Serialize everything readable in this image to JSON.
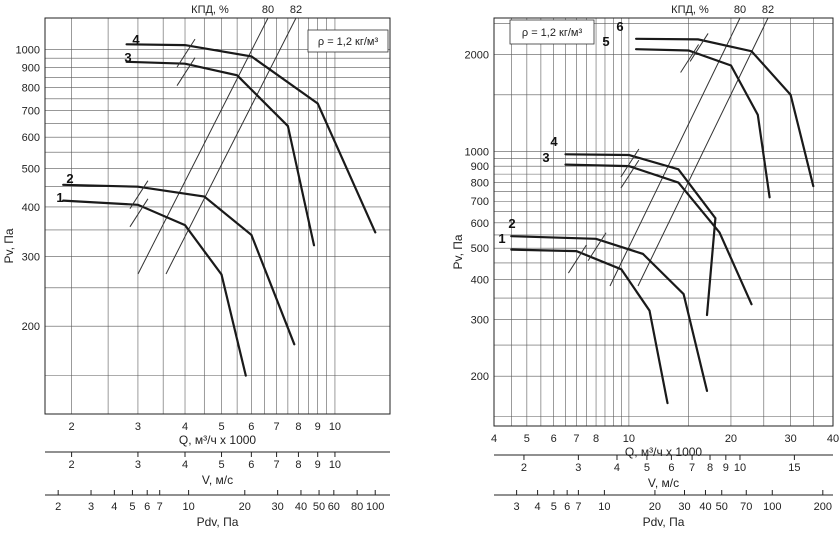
{
  "chart_data": [
    {
      "type": "line",
      "efficiency_label": "КПД, %",
      "efficiency_values": [
        "80",
        "82"
      ],
      "density": "ρ = 1,2 кг/м³",
      "ylabel": "Pv, Па",
      "xlabel": "Q, м³/ч x 1000",
      "scale": "log-log",
      "ylim": [
        120,
        1200
      ],
      "xlim": [
        1.7,
        14
      ],
      "y_ticks": [
        "200",
        "300",
        "400",
        "500",
        "600",
        "700",
        "800",
        "900",
        "1000"
      ],
      "x_ticks": [
        "2",
        "3",
        "4",
        "5",
        "6",
        "7",
        "8",
        "9",
        "10"
      ],
      "v_label": "V, м/с",
      "v_ticks": [
        "2",
        "3",
        "4",
        "5",
        "6",
        "7",
        "8",
        "9",
        "10"
      ],
      "pdv_label": "Pdv, Па",
      "pdv_ticks": [
        "2",
        "3",
        "4",
        "5",
        "6",
        "7",
        "10",
        "20",
        "30",
        "40",
        "50",
        "60",
        "80",
        "100"
      ],
      "series": [
        {
          "name": "1",
          "x": [
            1.9,
            3.0,
            4.0,
            5.0,
            5.8
          ],
          "y": [
            415,
            405,
            360,
            270,
            150
          ]
        },
        {
          "name": "2",
          "x": [
            1.9,
            3.0,
            4.5,
            6.0,
            7.8
          ],
          "y": [
            455,
            450,
            425,
            340,
            180
          ]
        },
        {
          "name": "3",
          "x": [
            2.8,
            4.0,
            5.5,
            7.5,
            8.8
          ],
          "y": [
            930,
            920,
            860,
            640,
            320
          ]
        },
        {
          "name": "4",
          "x": [
            2.8,
            4.0,
            6.0,
            9.0,
            12.8
          ],
          "y": [
            1030,
            1025,
            960,
            730,
            345
          ]
        }
      ]
    },
    {
      "type": "line",
      "efficiency_label": "КПД, %",
      "efficiency_values": [
        "80",
        "82"
      ],
      "density": "ρ = 1,2 кг/м³",
      "ylabel": "Pv, Па",
      "xlabel": "Q, м³/ч x 1000",
      "scale": "log-log",
      "ylim": [
        140,
        2600
      ],
      "xlim": [
        4,
        40
      ],
      "y_ticks": [
        "200",
        "300",
        "400",
        "500",
        "600",
        "700",
        "800",
        "900",
        "1000",
        "2000"
      ],
      "x_ticks": [
        "4",
        "5",
        "6",
        "7",
        "8",
        "10",
        "20",
        "30",
        "40"
      ],
      "v_label": "V, м/с",
      "v_ticks": [
        "2",
        "3",
        "4",
        "5",
        "6",
        "7",
        "8",
        "9",
        "10",
        "15"
      ],
      "pdv_label": "Pdv, Па",
      "pdv_ticks": [
        "3",
        "4",
        "5",
        "6",
        "7",
        "10",
        "20",
        "30",
        "40",
        "50",
        "70",
        "100",
        "200"
      ],
      "series": [
        {
          "name": "1",
          "x": [
            4.5,
            7.0,
            9.5,
            11.5,
            13.0
          ],
          "y": [
            495,
            490,
            430,
            320,
            165
          ]
        },
        {
          "name": "2",
          "x": [
            4.5,
            8.0,
            11.0,
            14.5,
            17.0
          ],
          "y": [
            545,
            535,
            480,
            360,
            180
          ]
        },
        {
          "name": "3",
          "x": [
            6.5,
            10.0,
            14.0,
            18.5,
            23.0
          ],
          "y": [
            910,
            900,
            800,
            560,
            335
          ]
        },
        {
          "name": "4",
          "x": [
            6.5,
            10.0,
            14.0,
            18.0,
            17.0
          ],
          "y": [
            980,
            975,
            880,
            620,
            310
          ]
        },
        {
          "name": "5",
          "x": [
            10.5,
            15.0,
            20.0,
            24.0,
            26.0
          ],
          "y": [
            2080,
            2060,
            1850,
            1300,
            720
          ]
        },
        {
          "name": "6",
          "x": [
            10.5,
            16.0,
            23.0,
            30.0,
            35.0
          ],
          "y": [
            2240,
            2230,
            2050,
            1500,
            780
          ]
        }
      ]
    }
  ]
}
